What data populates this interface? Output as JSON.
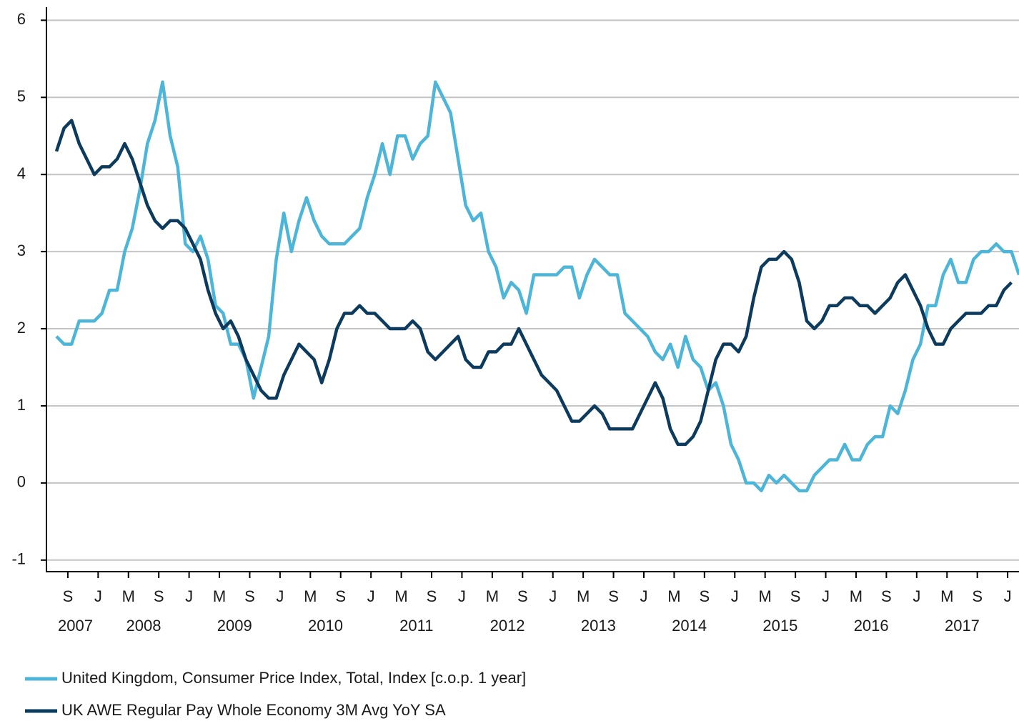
{
  "chart_data": {
    "type": "line",
    "x": [
      "2007-07",
      "2007-08",
      "2007-09",
      "2007-10",
      "2007-11",
      "2007-12",
      "2008-01",
      "2008-02",
      "2008-03",
      "2008-04",
      "2008-05",
      "2008-06",
      "2008-07",
      "2008-08",
      "2008-09",
      "2008-10",
      "2008-11",
      "2008-12",
      "2009-01",
      "2009-02",
      "2009-03",
      "2009-04",
      "2009-05",
      "2009-06",
      "2009-07",
      "2009-08",
      "2009-09",
      "2009-10",
      "2009-11",
      "2009-12",
      "2010-01",
      "2010-02",
      "2010-03",
      "2010-04",
      "2010-05",
      "2010-06",
      "2010-07",
      "2010-08",
      "2010-09",
      "2010-10",
      "2010-11",
      "2010-12",
      "2011-01",
      "2011-02",
      "2011-03",
      "2011-04",
      "2011-05",
      "2011-06",
      "2011-07",
      "2011-08",
      "2011-09",
      "2011-10",
      "2011-11",
      "2011-12",
      "2012-01",
      "2012-02",
      "2012-03",
      "2012-04",
      "2012-05",
      "2012-06",
      "2012-07",
      "2012-08",
      "2012-09",
      "2012-10",
      "2012-11",
      "2012-12",
      "2013-01",
      "2013-02",
      "2013-03",
      "2013-04",
      "2013-05",
      "2013-06",
      "2013-07",
      "2013-08",
      "2013-09",
      "2013-10",
      "2013-11",
      "2013-12",
      "2014-01",
      "2014-02",
      "2014-03",
      "2014-04",
      "2014-05",
      "2014-06",
      "2014-07",
      "2014-08",
      "2014-09",
      "2014-10",
      "2014-11",
      "2014-12",
      "2015-01",
      "2015-02",
      "2015-03",
      "2015-04",
      "2015-05",
      "2015-06",
      "2015-07",
      "2015-08",
      "2015-09",
      "2015-10",
      "2015-11",
      "2015-12",
      "2016-01",
      "2016-02",
      "2016-03",
      "2016-04",
      "2016-05",
      "2016-06",
      "2016-07",
      "2016-08",
      "2016-09",
      "2016-10",
      "2016-11",
      "2016-12",
      "2017-01",
      "2017-02",
      "2017-03",
      "2017-04",
      "2017-05",
      "2017-06",
      "2017-07",
      "2017-08",
      "2017-09",
      "2017-10",
      "2017-11",
      "2017-12",
      "2018-01",
      "2018-02"
    ],
    "series": [
      {
        "name": "United Kingdom, Consumer Price Index, Total, Index [c.o.p. 1 year]",
        "color": "#4db6d8",
        "values": [
          1.9,
          1.8,
          1.8,
          2.1,
          2.1,
          2.1,
          2.2,
          2.5,
          2.5,
          3.0,
          3.3,
          3.8,
          4.4,
          4.7,
          5.2,
          4.5,
          4.1,
          3.1,
          3.0,
          3.2,
          2.9,
          2.3,
          2.2,
          1.8,
          1.8,
          1.6,
          1.1,
          1.5,
          1.9,
          2.9,
          3.5,
          3.0,
          3.4,
          3.7,
          3.4,
          3.2,
          3.1,
          3.1,
          3.1,
          3.2,
          3.3,
          3.7,
          4.0,
          4.4,
          4.0,
          4.5,
          4.5,
          4.2,
          4.4,
          4.5,
          5.2,
          5.0,
          4.8,
          4.2,
          3.6,
          3.4,
          3.5,
          3.0,
          2.8,
          2.4,
          2.6,
          2.5,
          2.2,
          2.7,
          2.7,
          2.7,
          2.7,
          2.8,
          2.8,
          2.4,
          2.7,
          2.9,
          2.8,
          2.7,
          2.7,
          2.2,
          2.1,
          2.0,
          1.9,
          1.7,
          1.6,
          1.8,
          1.5,
          1.9,
          1.6,
          1.5,
          1.2,
          1.3,
          1.0,
          0.5,
          0.3,
          0.0,
          0.0,
          -0.1,
          0.1,
          0.0,
          0.1,
          0.0,
          -0.1,
          -0.1,
          0.1,
          0.2,
          0.3,
          0.3,
          0.5,
          0.3,
          0.3,
          0.5,
          0.6,
          0.6,
          1.0,
          0.9,
          1.2,
          1.6,
          1.8,
          2.3,
          2.3,
          2.7,
          2.9,
          2.6,
          2.6,
          2.9,
          3.0,
          3.0,
          3.1,
          3.0,
          3.0,
          2.7
        ]
      },
      {
        "name": "UK AWE Regular Pay Whole Economy 3M Avg YoY SA",
        "color": "#0c3b5e",
        "values": [
          4.3,
          4.6,
          4.7,
          4.4,
          4.2,
          4.0,
          4.1,
          4.1,
          4.2,
          4.4,
          4.2,
          3.9,
          3.6,
          3.4,
          3.3,
          3.4,
          3.4,
          3.3,
          3.1,
          2.9,
          2.5,
          2.2,
          2.0,
          2.1,
          1.9,
          1.6,
          1.4,
          1.2,
          1.1,
          1.1,
          1.4,
          1.6,
          1.8,
          1.7,
          1.6,
          1.3,
          1.6,
          2.0,
          2.2,
          2.2,
          2.3,
          2.2,
          2.2,
          2.1,
          2.0,
          2.0,
          2.0,
          2.1,
          2.0,
          1.7,
          1.6,
          1.7,
          1.8,
          1.9,
          1.6,
          1.5,
          1.5,
          1.7,
          1.7,
          1.8,
          1.8,
          2.0,
          1.8,
          1.6,
          1.4,
          1.3,
          1.2,
          1.0,
          0.8,
          0.8,
          0.9,
          1.0,
          0.9,
          0.7,
          0.7,
          0.7,
          0.7,
          0.9,
          1.1,
          1.3,
          1.1,
          0.7,
          0.5,
          0.5,
          0.6,
          0.8,
          1.2,
          1.6,
          1.8,
          1.8,
          1.7,
          1.9,
          2.4,
          2.8,
          2.9,
          2.9,
          3.0,
          2.9,
          2.6,
          2.1,
          2.0,
          2.1,
          2.3,
          2.3,
          2.4,
          2.4,
          2.3,
          2.3,
          2.2,
          2.3,
          2.4,
          2.6,
          2.7,
          2.5,
          2.3,
          2.0,
          1.8,
          1.8,
          2.0,
          2.1,
          2.2,
          2.2,
          2.2,
          2.3,
          2.3,
          2.5,
          2.6,
          null
        ]
      }
    ],
    "xlim": [
      "2007-07",
      "2018-02"
    ],
    "xticks": [
      {
        "value": "2007-09",
        "label": "S"
      },
      {
        "value": "2008-01",
        "label": "J"
      },
      {
        "value": "2008-05",
        "label": "M"
      },
      {
        "value": "2008-09",
        "label": "S"
      },
      {
        "value": "2009-01",
        "label": "J"
      },
      {
        "value": "2009-05",
        "label": "M"
      },
      {
        "value": "2009-09",
        "label": "S"
      },
      {
        "value": "2010-01",
        "label": "J"
      },
      {
        "value": "2010-05",
        "label": "M"
      },
      {
        "value": "2010-09",
        "label": "S"
      },
      {
        "value": "2011-01",
        "label": "J"
      },
      {
        "value": "2011-05",
        "label": "M"
      },
      {
        "value": "2011-09",
        "label": "S"
      },
      {
        "value": "2012-01",
        "label": "J"
      },
      {
        "value": "2012-05",
        "label": "M"
      },
      {
        "value": "2012-09",
        "label": "S"
      },
      {
        "value": "2013-01",
        "label": "J"
      },
      {
        "value": "2013-05",
        "label": "M"
      },
      {
        "value": "2013-09",
        "label": "S"
      },
      {
        "value": "2014-01",
        "label": "J"
      },
      {
        "value": "2014-05",
        "label": "M"
      },
      {
        "value": "2014-09",
        "label": "S"
      },
      {
        "value": "2015-01",
        "label": "J"
      },
      {
        "value": "2015-05",
        "label": "M"
      },
      {
        "value": "2015-09",
        "label": "S"
      },
      {
        "value": "2016-01",
        "label": "J"
      },
      {
        "value": "2016-05",
        "label": "M"
      },
      {
        "value": "2016-09",
        "label": "S"
      },
      {
        "value": "2017-01",
        "label": "J"
      },
      {
        "value": "2017-05",
        "label": "M"
      },
      {
        "value": "2017-09",
        "label": "S"
      },
      {
        "value": "2018-01",
        "label": "J"
      }
    ],
    "years": [
      "2007",
      "2008",
      "2009",
      "2010",
      "2011",
      "2012",
      "2013",
      "2014",
      "2015",
      "2016",
      "2017"
    ],
    "ylim": [
      -1.15,
      6.17
    ],
    "yticks": [
      -1,
      0,
      1,
      2,
      3,
      4,
      5,
      6
    ],
    "grid": true
  }
}
